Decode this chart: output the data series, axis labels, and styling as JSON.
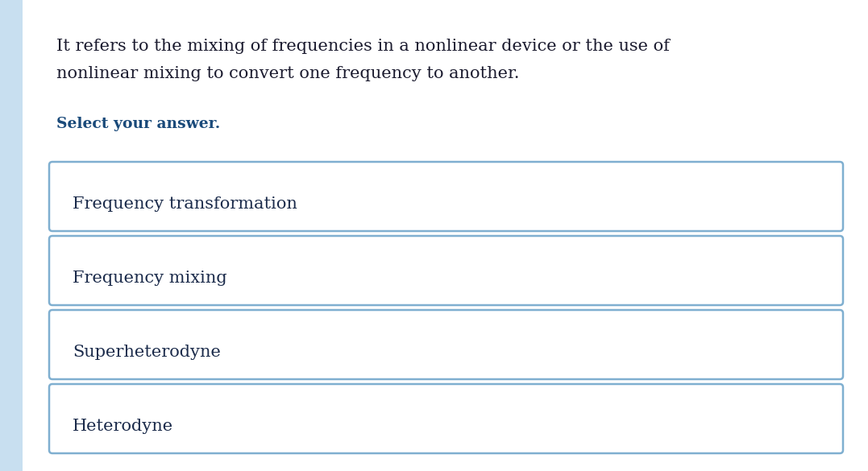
{
  "background_color": "#f0f4f8",
  "content_background": "#ffffff",
  "question_text_line1": "It refers to the mixing of frequencies in a nonlinear device or the use of",
  "question_text_line2": "nonlinear mixing to convert one frequency to another.",
  "select_text": "Select your answer.",
  "options": [
    "Frequency transformation",
    "Frequency mixing",
    "Superheterodyne",
    "Heterodyne"
  ],
  "question_color": "#1a1a2e",
  "select_color": "#1a4a7a",
  "option_text_color": "#1a2a4a",
  "option_box_edge_color": "#7fafd0",
  "option_box_face_color": "#ffffff",
  "left_sidebar_color": "#c8dff0",
  "question_fontsize": 15.0,
  "select_fontsize": 13.5,
  "option_fontsize": 15.0
}
